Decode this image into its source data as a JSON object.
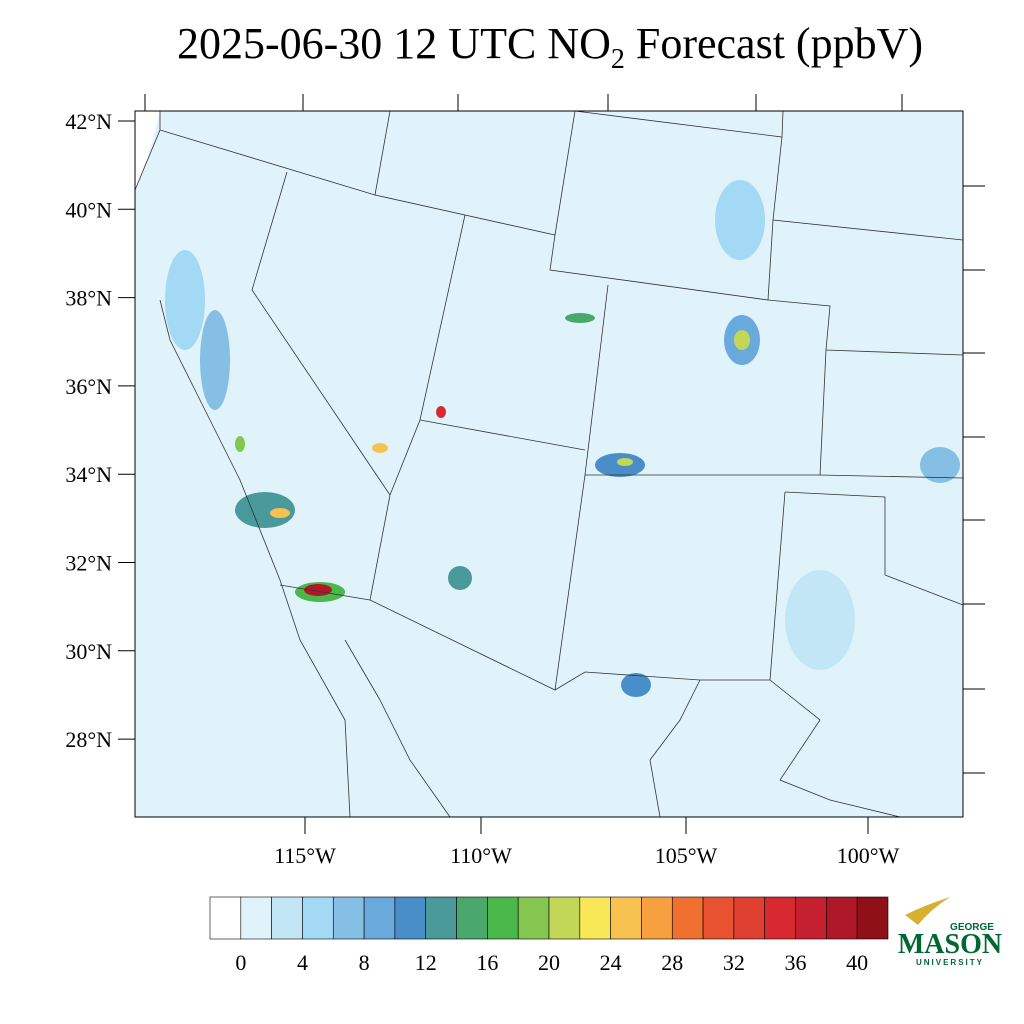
{
  "title": {
    "parts": [
      "2025-06-30 12 UTC NO",
      "2",
      " Forecast (ppbV)"
    ]
  },
  "lat_labels": [
    "42°N",
    "40°N",
    "38°N",
    "36°N",
    "34°N",
    "32°N",
    "30°N",
    "28°N"
  ],
  "lon_labels": [
    "115°W",
    "110°W",
    "105°W",
    "100°W"
  ],
  "colorbar": {
    "colors": [
      "#ffffff",
      "#e0f3fb",
      "#c2e6f6",
      "#a3d9f4",
      "#85bfe3",
      "#6aa9dc",
      "#4a8ec9",
      "#4a9a9c",
      "#4aa86c",
      "#4ab84a",
      "#84c650",
      "#c2d658",
      "#f8e858",
      "#f8c250",
      "#f8a040",
      "#f07030",
      "#e85230",
      "#e04030",
      "#d82830",
      "#c42030",
      "#ae1828",
      "#901018"
    ],
    "labels": [
      0,
      4,
      8,
      12,
      16,
      20,
      24,
      28,
      32,
      36,
      40
    ]
  },
  "logo": {
    "top": "GEORGE",
    "main": "MASON",
    "bottom": "UNIVERSITY"
  }
}
